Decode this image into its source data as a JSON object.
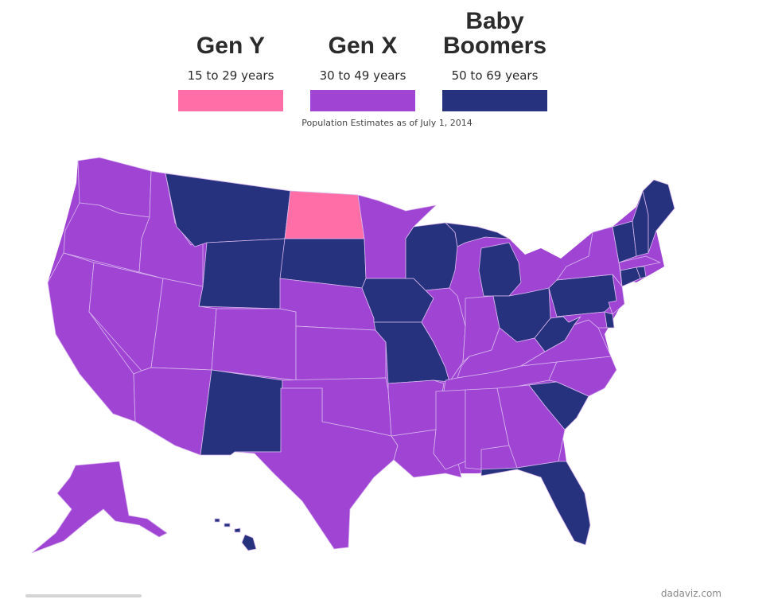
{
  "legend": {
    "items": [
      {
        "key": "gen_y",
        "title": "Gen Y",
        "range": "15 to 29 years",
        "color": "#ff6ea6"
      },
      {
        "key": "gen_x",
        "title": "Gen X",
        "range": "30 to 49 years",
        "color": "#a044d4"
      },
      {
        "key": "boomers",
        "title": "Baby\nBoomers",
        "range": "50 to 69 years",
        "color": "#27327f"
      }
    ]
  },
  "subtitle": "Population Estimates as of July 1, 2014",
  "credit": "dadaviz.com",
  "map": {
    "background_color": "#a044d4",
    "states": {
      "WA": "gen_x",
      "OR": "gen_x",
      "CA": "gen_x",
      "NV": "gen_x",
      "ID": "gen_x",
      "MT": "boomers",
      "WY": "boomers",
      "UT": "gen_x",
      "AZ": "gen_x",
      "CO": "gen_x",
      "NM": "boomers",
      "ND": "gen_y",
      "SD": "boomers",
      "NE": "gen_x",
      "KS": "gen_x",
      "OK": "gen_x",
      "TX": "gen_x",
      "MN": "gen_x",
      "IA": "boomers",
      "MO": "boomers",
      "AR": "gen_x",
      "LA": "gen_x",
      "WI": "boomers",
      "IL": "gen_x",
      "MI": "boomers",
      "IN": "gen_x",
      "OH": "boomers",
      "KY": "gen_x",
      "TN": "gen_x",
      "MS": "gen_x",
      "AL": "gen_x",
      "GA": "gen_x",
      "FL": "boomers",
      "SC": "boomers",
      "NC": "gen_x",
      "VA": "gen_x",
      "WV": "boomers",
      "PA": "boomers",
      "NY": "gen_x",
      "NJ": "gen_x",
      "DE": "boomers",
      "MD": "gen_x",
      "CT": "boomers",
      "RI": "boomers",
      "MA": "gen_x",
      "VT": "boomers",
      "NH": "boomers",
      "ME": "boomers",
      "AK": "gen_x",
      "HI": "boomers"
    }
  }
}
